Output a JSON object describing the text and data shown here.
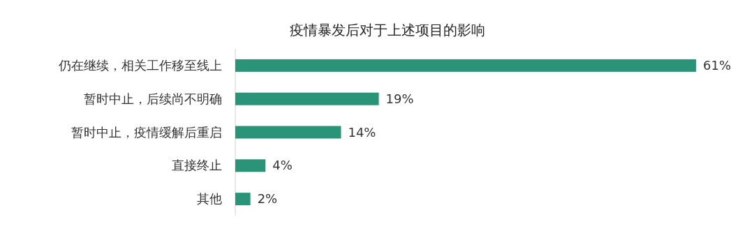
{
  "chart_data": {
    "type": "bar",
    "orientation": "horizontal",
    "title": "疫情暴发后对于上述项目的影响",
    "categories": [
      "仍在继续，相关工作移至线上",
      "暂时中止，后续尚不明确",
      "暂时中止，疫情缓解后重启",
      "直接终止",
      "其他"
    ],
    "values": [
      61,
      19,
      14,
      4,
      2
    ],
    "value_labels": [
      "61%",
      "19%",
      "14%",
      "4%",
      "2%"
    ],
    "color": "#2a9479"
  }
}
